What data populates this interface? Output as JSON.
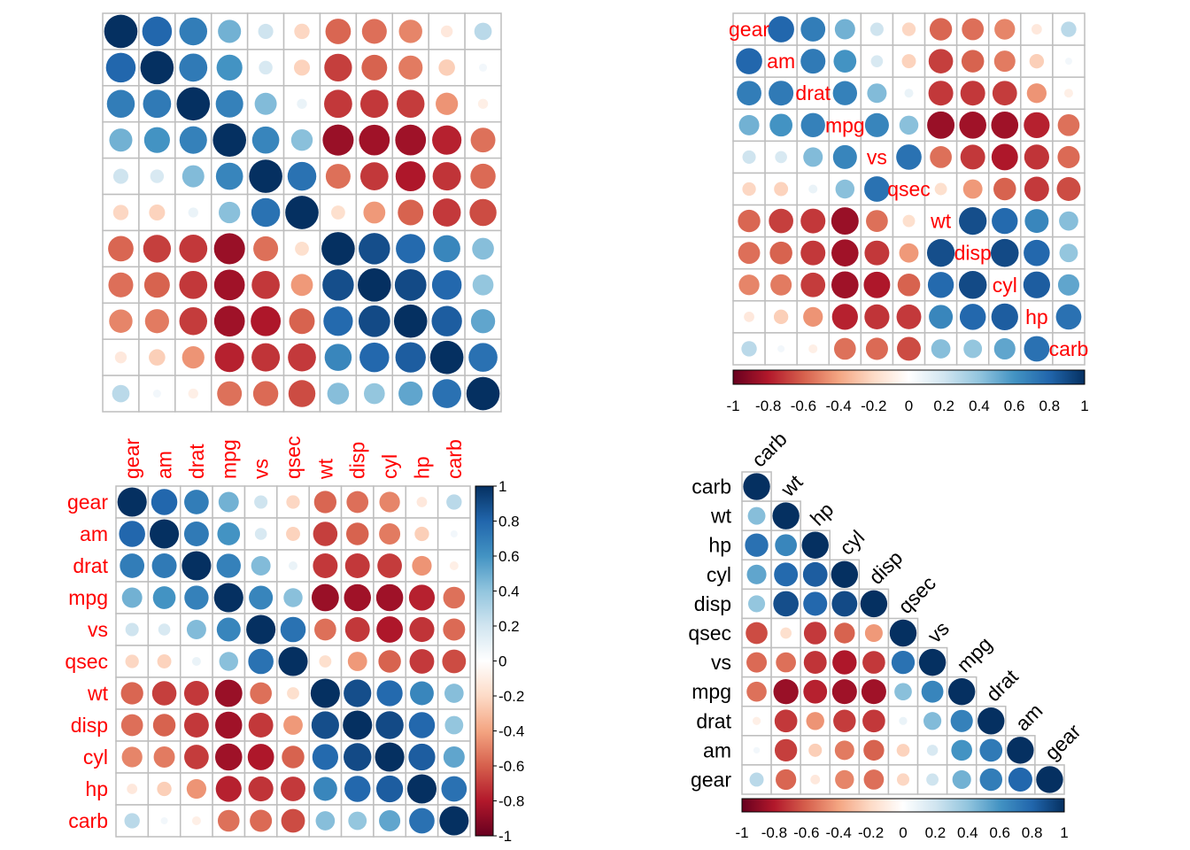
{
  "chart_data": {
    "type": "heatmap",
    "variables": [
      "gear",
      "am",
      "drat",
      "mpg",
      "vs",
      "qsec",
      "wt",
      "disp",
      "cyl",
      "hp",
      "carb"
    ],
    "matrix": [
      [
        1,
        0.794,
        0.7,
        0.48,
        0.206,
        -0.213,
        -0.583,
        -0.556,
        -0.493,
        -0.126,
        0.274
      ],
      [
        0.794,
        1,
        0.713,
        0.6,
        0.168,
        -0.23,
        -0.692,
        -0.591,
        -0.523,
        -0.243,
        0.058
      ],
      [
        0.7,
        0.713,
        1,
        0.681,
        0.44,
        0.091,
        -0.712,
        -0.71,
        -0.7,
        -0.449,
        -0.091
      ],
      [
        0.48,
        0.6,
        0.681,
        1,
        0.664,
        0.419,
        -0.868,
        -0.848,
        -0.852,
        -0.776,
        -0.551
      ],
      [
        0.206,
        0.168,
        0.44,
        0.664,
        1,
        0.745,
        -0.555,
        -0.71,
        -0.811,
        -0.723,
        -0.57
      ],
      [
        -0.213,
        -0.23,
        0.091,
        0.419,
        0.745,
        1,
        -0.175,
        -0.434,
        -0.591,
        -0.708,
        -0.656
      ],
      [
        -0.583,
        -0.692,
        -0.712,
        -0.868,
        -0.555,
        -0.175,
        1,
        0.888,
        0.782,
        0.659,
        0.428
      ],
      [
        -0.556,
        -0.591,
        -0.71,
        -0.848,
        -0.71,
        -0.434,
        0.888,
        1,
        0.902,
        0.791,
        0.395
      ],
      [
        -0.493,
        -0.523,
        -0.7,
        -0.852,
        -0.811,
        -0.591,
        0.782,
        0.902,
        1,
        0.832,
        0.527
      ],
      [
        -0.126,
        -0.243,
        -0.449,
        -0.776,
        -0.723,
        -0.708,
        0.659,
        0.791,
        0.832,
        1,
        0.75
      ],
      [
        0.274,
        0.058,
        -0.091,
        -0.551,
        -0.57,
        -0.656,
        0.428,
        0.395,
        0.527,
        0.75,
        1
      ]
    ],
    "lower_triangle_order": [
      "carb",
      "wt",
      "hp",
      "cyl",
      "disp",
      "qsec",
      "vs",
      "mpg",
      "drat",
      "am",
      "gear"
    ],
    "colorbar_range": [
      -1,
      1
    ],
    "colorbar_ticks": [
      "-1",
      "-0.8",
      "-0.6",
      "-0.4",
      "-0.2",
      "0",
      "0.2",
      "0.4",
      "0.6",
      "0.8",
      "1"
    ],
    "palette": [
      "#67001F",
      "#B2182B",
      "#D6604D",
      "#F4A582",
      "#FDDBC7",
      "#FFFFFF",
      "#D1E5F0",
      "#92C5DE",
      "#4393C3",
      "#2166AC",
      "#053061"
    ],
    "label_color": "#FF0000",
    "panels": [
      {
        "layout": "full",
        "labels": "none",
        "colorbar": "none"
      },
      {
        "layout": "full",
        "labels": "diagonal",
        "colorbar": "bottom"
      },
      {
        "layout": "full",
        "labels": "left-top",
        "colorbar": "right"
      },
      {
        "layout": "lower",
        "labels": "left-diagonal",
        "colorbar": "bottom"
      }
    ]
  }
}
